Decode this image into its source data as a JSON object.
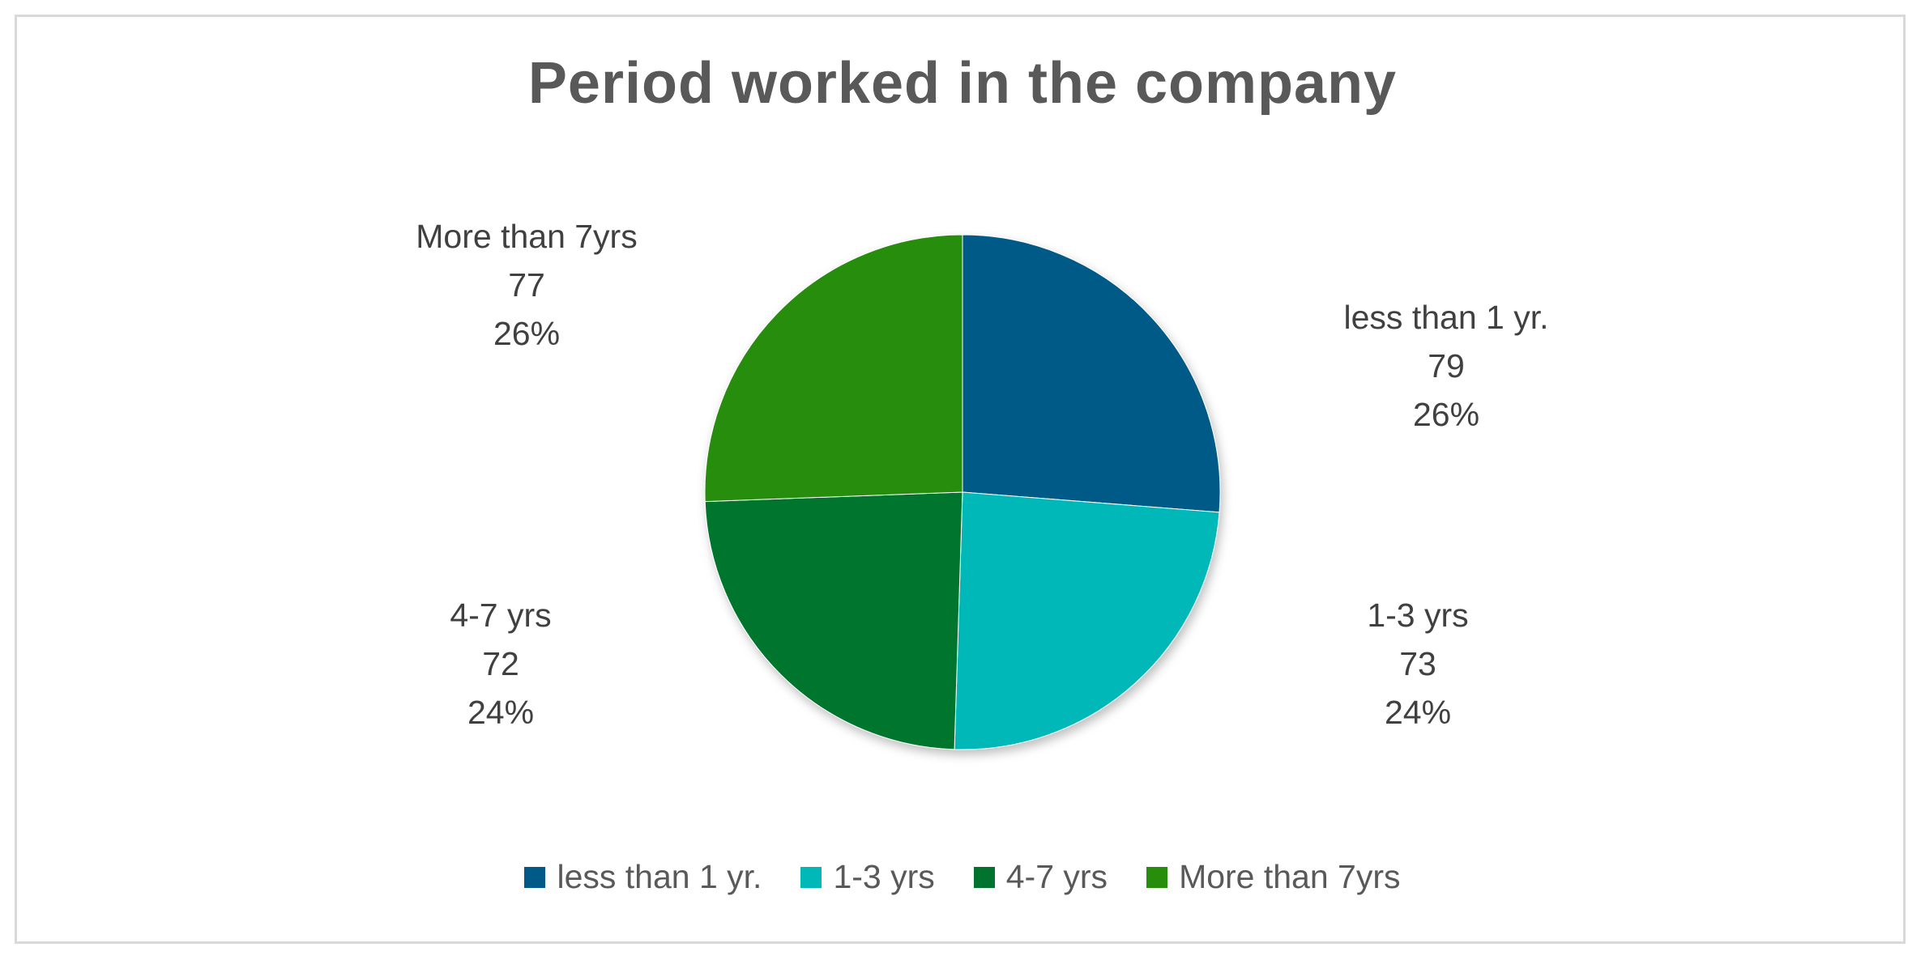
{
  "chart_data": {
    "type": "pie",
    "title": "Period worked in the company",
    "categories": [
      "less than 1 yr.",
      "1-3 yrs",
      "4-7 yrs",
      "More than 7yrs"
    ],
    "values": [
      79,
      73,
      72,
      77
    ],
    "percent_labels": [
      "26%",
      "24%",
      "24%",
      "26%"
    ],
    "colors": [
      "#005A87",
      "#00B8B8",
      "#00742F",
      "#288D0A"
    ],
    "legend_position": "bottom",
    "start_angle_deg": 0,
    "direction": "clockwise"
  }
}
